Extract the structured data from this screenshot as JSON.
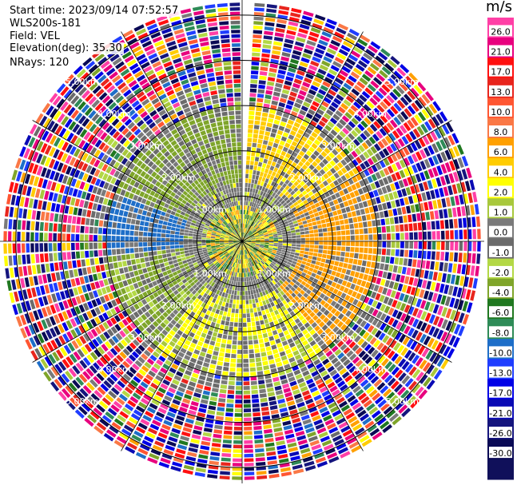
{
  "info": {
    "start_time": "Start time: 2023/09/14 07:52:57",
    "instrument": "WLS200s-181",
    "field": "Field: VEL",
    "elevation": "Elevation(deg): 35.30",
    "nrays": "NRays: 120"
  },
  "colorbar": {
    "unit": "m/s",
    "tick_labels": [
      "26.0",
      "21.0",
      "17.0",
      "13.0",
      "10.0",
      "8.0",
      "6.0",
      "4.0",
      "2.0",
      "1.0",
      "0.0",
      "-1.0",
      "-2.0",
      "-4.0",
      "-6.0",
      "-8.0",
      "-10.0",
      "-13.0",
      "-17.0",
      "-21.0",
      "-26.0",
      "-30.0"
    ],
    "colors": [
      "#ff3fa6",
      "#e8007e",
      "#ff1010",
      "#e8251d",
      "#ff5632",
      "#fa7846",
      "#ffa000",
      "#ffcc00",
      "#ffff00",
      "#a8c83c",
      "#7a7a7a",
      "#6b6b6b",
      "#b3d845",
      "#7fa52a",
      "#207820",
      "#2e8b57",
      "#1e6ec8",
      "#1f3dff",
      "#0000e6",
      "#0a0ab4",
      "#15157d",
      "#0a0a55",
      "#10105a"
    ]
  },
  "chart_data": {
    "type": "ppi",
    "field": "VEL",
    "units": "m/s",
    "nrays": 120,
    "elevation_deg": 35.3,
    "clim": [
      -30,
      30
    ],
    "range_ring_labels": [
      "1.00km",
      "2.00km",
      "3.00km",
      "4.00km",
      "5.00km"
    ],
    "range_rings_km": [
      1,
      2,
      3,
      4,
      5
    ],
    "max_range_km": 5.35,
    "gate_km": 0.1,
    "spoke_angles_deg": [
      0,
      30,
      60,
      90,
      120,
      150,
      180,
      210,
      240,
      270,
      300,
      330
    ],
    "near_field": {
      "max_km": 3.0,
      "bands": [
        {
          "from_deg": 0,
          "to_deg": 60,
          "value": 4.5
        },
        {
          "from_deg": 60,
          "to_deg": 140,
          "value": 7.0
        },
        {
          "from_deg": 140,
          "to_deg": 220,
          "value": 2.5
        },
        {
          "from_deg": 220,
          "to_deg": 265,
          "value": -2.5
        },
        {
          "from_deg": 265,
          "to_deg": 290,
          "value": -9.0
        },
        {
          "from_deg": 290,
          "to_deg": 360,
          "value": -3.0
        }
      ],
      "inner_noise_km": 0.8,
      "inner_zero_km": 1.3
    },
    "far_field": "noise",
    "missing_rays_deg": [
      0
    ]
  }
}
